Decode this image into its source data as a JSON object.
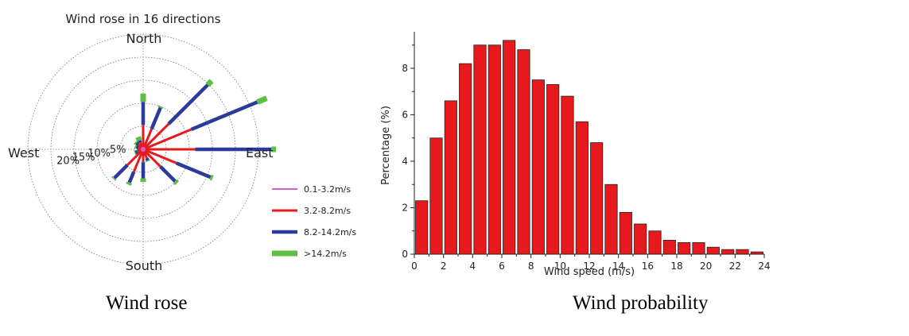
{
  "captions": {
    "wind_rose": "Wind rose",
    "wind_probability": "Wind probability"
  },
  "chart_data": [
    {
      "type": "wind-rose",
      "title": "Wind rose in 16 directions",
      "directions": [
        "N",
        "NNE",
        "NE",
        "ENE",
        "E",
        "ESE",
        "SE",
        "SSE",
        "S",
        "SSW",
        "SW",
        "WSW",
        "W",
        "WNW",
        "NW",
        "NNW"
      ],
      "cardinal_labels": {
        "north": "North",
        "east": "East",
        "south": "South",
        "west": "West"
      },
      "ring_labels": [
        "5%",
        "10%",
        "15%",
        "20%"
      ],
      "ring_values": [
        5,
        10,
        15,
        20
      ],
      "r_max": 25,
      "series": [
        {
          "name": "0.1-3.2m/s",
          "color": "#cc66cc",
          "values": [
            0.3,
            0.3,
            0.3,
            0.3,
            0.3,
            0.3,
            0.3,
            0.3,
            0.3,
            0.3,
            0.3,
            0.3,
            0.3,
            0.3,
            0.3,
            0.3
          ]
        },
        {
          "name": "3.2-8.2m/s",
          "color": "#e8191c",
          "values": [
            5.0,
            4.5,
            7.5,
            11.0,
            11.0,
            7.5,
            5.0,
            1.8,
            2.5,
            5.0,
            4.5,
            1.0,
            0.8,
            0.8,
            1.2,
            1.3
          ]
        },
        {
          "name": "8.2-14.2m/s",
          "color": "#2b3b9c",
          "values": [
            5.0,
            5.0,
            12.0,
            15.5,
            16.5,
            8.0,
            4.5,
            0.5,
            3.5,
            2.5,
            4.0,
            0.5,
            0.2,
            0.5,
            0.5,
            0.5
          ]
        },
        {
          "name": ">14.2m/s",
          "color": "#5cc045",
          "values": [
            1.8,
            0.3,
            1.2,
            2.2,
            1.0,
            0.5,
            0.6,
            0.2,
            0.8,
            0.5,
            0.3,
            0.2,
            0.1,
            0.3,
            0.3,
            0.8
          ]
        }
      ],
      "legend_placement": "bottom-right"
    },
    {
      "type": "bar",
      "xlabel": "Wind speed (m/s)",
      "ylabel": "Percentage (%)",
      "x": [
        0,
        1,
        2,
        3,
        4,
        5,
        6,
        7,
        8,
        9,
        10,
        11,
        12,
        13,
        14,
        15,
        16,
        17,
        18,
        19,
        20,
        21,
        22,
        23
      ],
      "values": [
        2.3,
        5.0,
        6.6,
        8.2,
        9.0,
        9.0,
        9.2,
        8.8,
        7.5,
        7.3,
        6.8,
        5.7,
        4.8,
        3.0,
        1.8,
        1.3,
        1.0,
        0.6,
        0.5,
        0.5,
        0.3,
        0.2,
        0.2,
        0.1
      ],
      "xlim": [
        0,
        24
      ],
      "ylim": [
        0,
        9.4
      ],
      "xticks": [
        "0",
        "2",
        "4",
        "6",
        "8",
        "10",
        "12",
        "14",
        "16",
        "18",
        "20",
        "22",
        "24"
      ],
      "yticks": [
        "0",
        "2",
        "4",
        "6",
        "8"
      ],
      "bar_color": "#e8191c",
      "grid": false
    }
  ]
}
